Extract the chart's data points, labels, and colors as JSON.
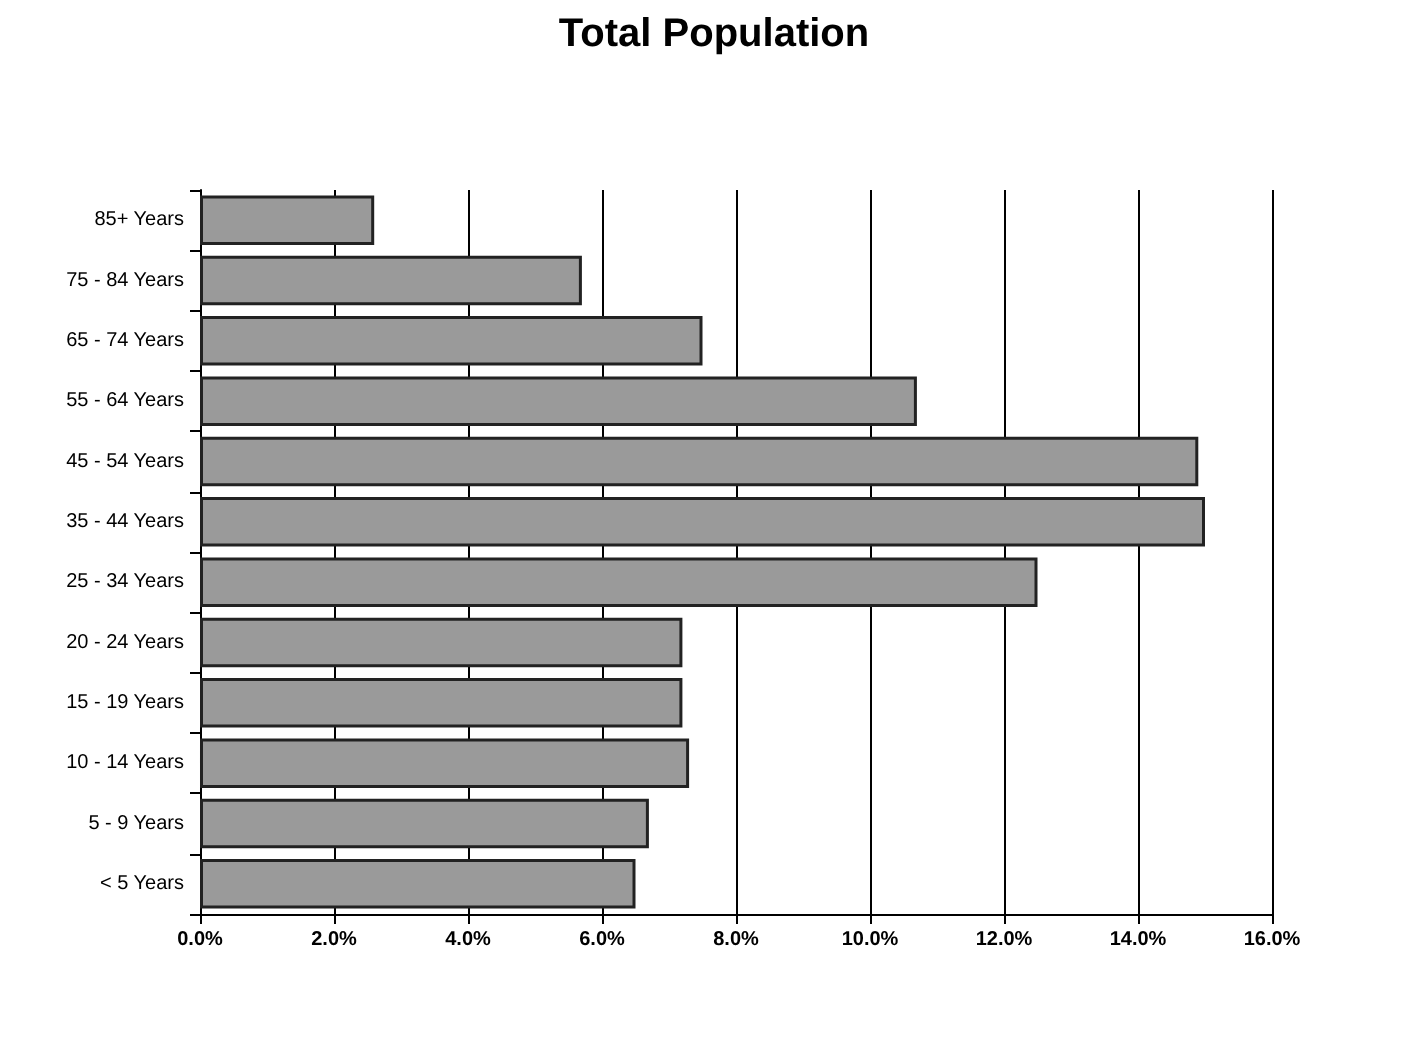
{
  "chart_data": {
    "type": "bar",
    "orientation": "horizontal",
    "title": "Total Population",
    "categories": [
      "85+ Years",
      "75 - 84 Years",
      "65 - 74 Years",
      "55 - 64 Years",
      "45 - 54 Years",
      "35 - 44 Years",
      "25 - 34 Years",
      "20 - 24 Years",
      "15 - 19 Years",
      "10 - 14 Years",
      "5 - 9 Years",
      "< 5 Years"
    ],
    "values": [
      2.6,
      5.7,
      7.5,
      10.7,
      14.9,
      15.0,
      12.5,
      7.2,
      7.2,
      7.3,
      6.7,
      6.5
    ],
    "color": "#9a9a9a",
    "xlim": [
      0,
      16
    ],
    "xticks": [
      {
        "value": 0,
        "label": "0.0%"
      },
      {
        "value": 2,
        "label": "2.0%"
      },
      {
        "value": 4,
        "label": "4.0%"
      },
      {
        "value": 6,
        "label": "6.0%"
      },
      {
        "value": 8,
        "label": "8.0%"
      },
      {
        "value": 10,
        "label": "10.0%"
      },
      {
        "value": 12,
        "label": "12.0%"
      },
      {
        "value": 14,
        "label": "14.0%"
      },
      {
        "value": 16,
        "label": "16.0%"
      }
    ],
    "grid": "x"
  }
}
